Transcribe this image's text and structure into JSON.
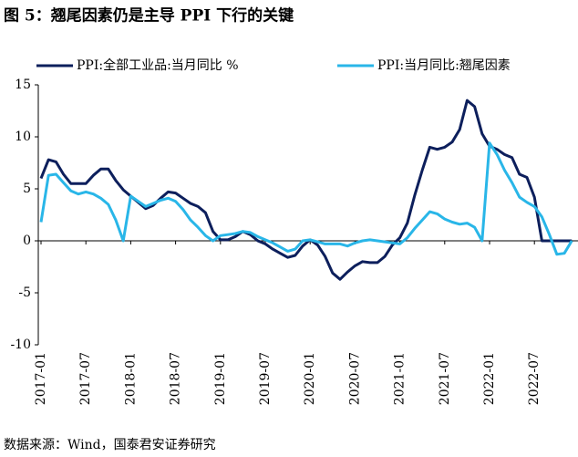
{
  "chart_data": {
    "type": "line",
    "title": "图 5：翘尾因素仍是主导  PPI  下行的关键",
    "source": "数据来源：Wind，国泰君安证券研究",
    "categories": [
      "2017-01",
      null,
      null,
      null,
      null,
      null,
      "2017-07",
      null,
      null,
      null,
      null,
      null,
      "2018-01",
      null,
      null,
      null,
      null,
      null,
      "2018-07",
      null,
      null,
      null,
      null,
      null,
      "2019-01",
      null,
      null,
      null,
      null,
      null,
      "2019-07",
      null,
      null,
      null,
      null,
      null,
      "2020-01",
      null,
      null,
      null,
      null,
      null,
      "2020-07",
      null,
      null,
      null,
      null,
      null,
      "2021-01",
      null,
      null,
      null,
      null,
      null,
      "2021-07",
      null,
      null,
      null,
      null,
      null,
      "2022-01",
      null,
      null,
      null,
      null,
      null,
      "2022-07",
      null,
      null,
      null,
      null,
      null
    ],
    "series": [
      {
        "name": "PPI:全部工业品:当月同比 %",
        "color": "#0d1f5c",
        "values": [
          6.0,
          7.8,
          7.6,
          6.4,
          5.5,
          5.5,
          5.5,
          6.3,
          6.9,
          6.9,
          5.8,
          4.9,
          4.3,
          3.7,
          3.1,
          3.4,
          4.1,
          4.7,
          4.6,
          4.1,
          3.6,
          3.3,
          2.7,
          0.9,
          0.1,
          0.1,
          0.4,
          0.9,
          0.6,
          0.0,
          -0.3,
          -0.8,
          -1.2,
          -1.6,
          -1.4,
          -0.5,
          0.1,
          -0.4,
          -1.5,
          -3.1,
          -3.7,
          -3.0,
          -2.4,
          -2.0,
          -2.1,
          -2.1,
          -1.5,
          -0.4,
          0.3,
          1.7,
          4.4,
          6.8,
          9.0,
          8.8,
          9.0,
          9.5,
          10.7,
          13.5,
          12.9,
          10.3,
          9.1,
          8.8,
          8.3,
          8.0,
          6.4,
          6.1,
          4.2,
          0.0,
          0.0,
          0.0,
          0.0,
          0.0
        ]
      },
      {
        "name": "PPI:当月同比:翘尾因素",
        "color": "#29b6e8",
        "values": [
          1.8,
          6.3,
          6.4,
          5.6,
          4.8,
          4.5,
          4.7,
          4.5,
          4.1,
          3.5,
          2.0,
          0.0,
          4.3,
          3.8,
          3.3,
          3.6,
          3.9,
          4.1,
          3.8,
          3.0,
          2.0,
          1.3,
          0.5,
          0.0,
          0.5,
          0.6,
          0.7,
          0.9,
          0.8,
          0.4,
          0.1,
          -0.2,
          -0.6,
          -1.0,
          -0.8,
          0.0,
          0.1,
          -0.1,
          -0.3,
          -0.3,
          -0.3,
          -0.5,
          -0.2,
          0.0,
          0.1,
          0.0,
          -0.1,
          -0.2,
          -0.3,
          0.3,
          1.2,
          2.0,
          2.8,
          2.6,
          2.1,
          1.8,
          1.6,
          1.7,
          1.3,
          0.0,
          9.4,
          8.3,
          6.8,
          5.6,
          4.2,
          3.7,
          3.3,
          2.3,
          0.6,
          -1.3,
          -1.2,
          0.0
        ]
      }
    ],
    "ylim": [
      -10,
      15
    ],
    "yticks": [
      -10,
      -5,
      0,
      5,
      10,
      15
    ],
    "grid": false
  }
}
